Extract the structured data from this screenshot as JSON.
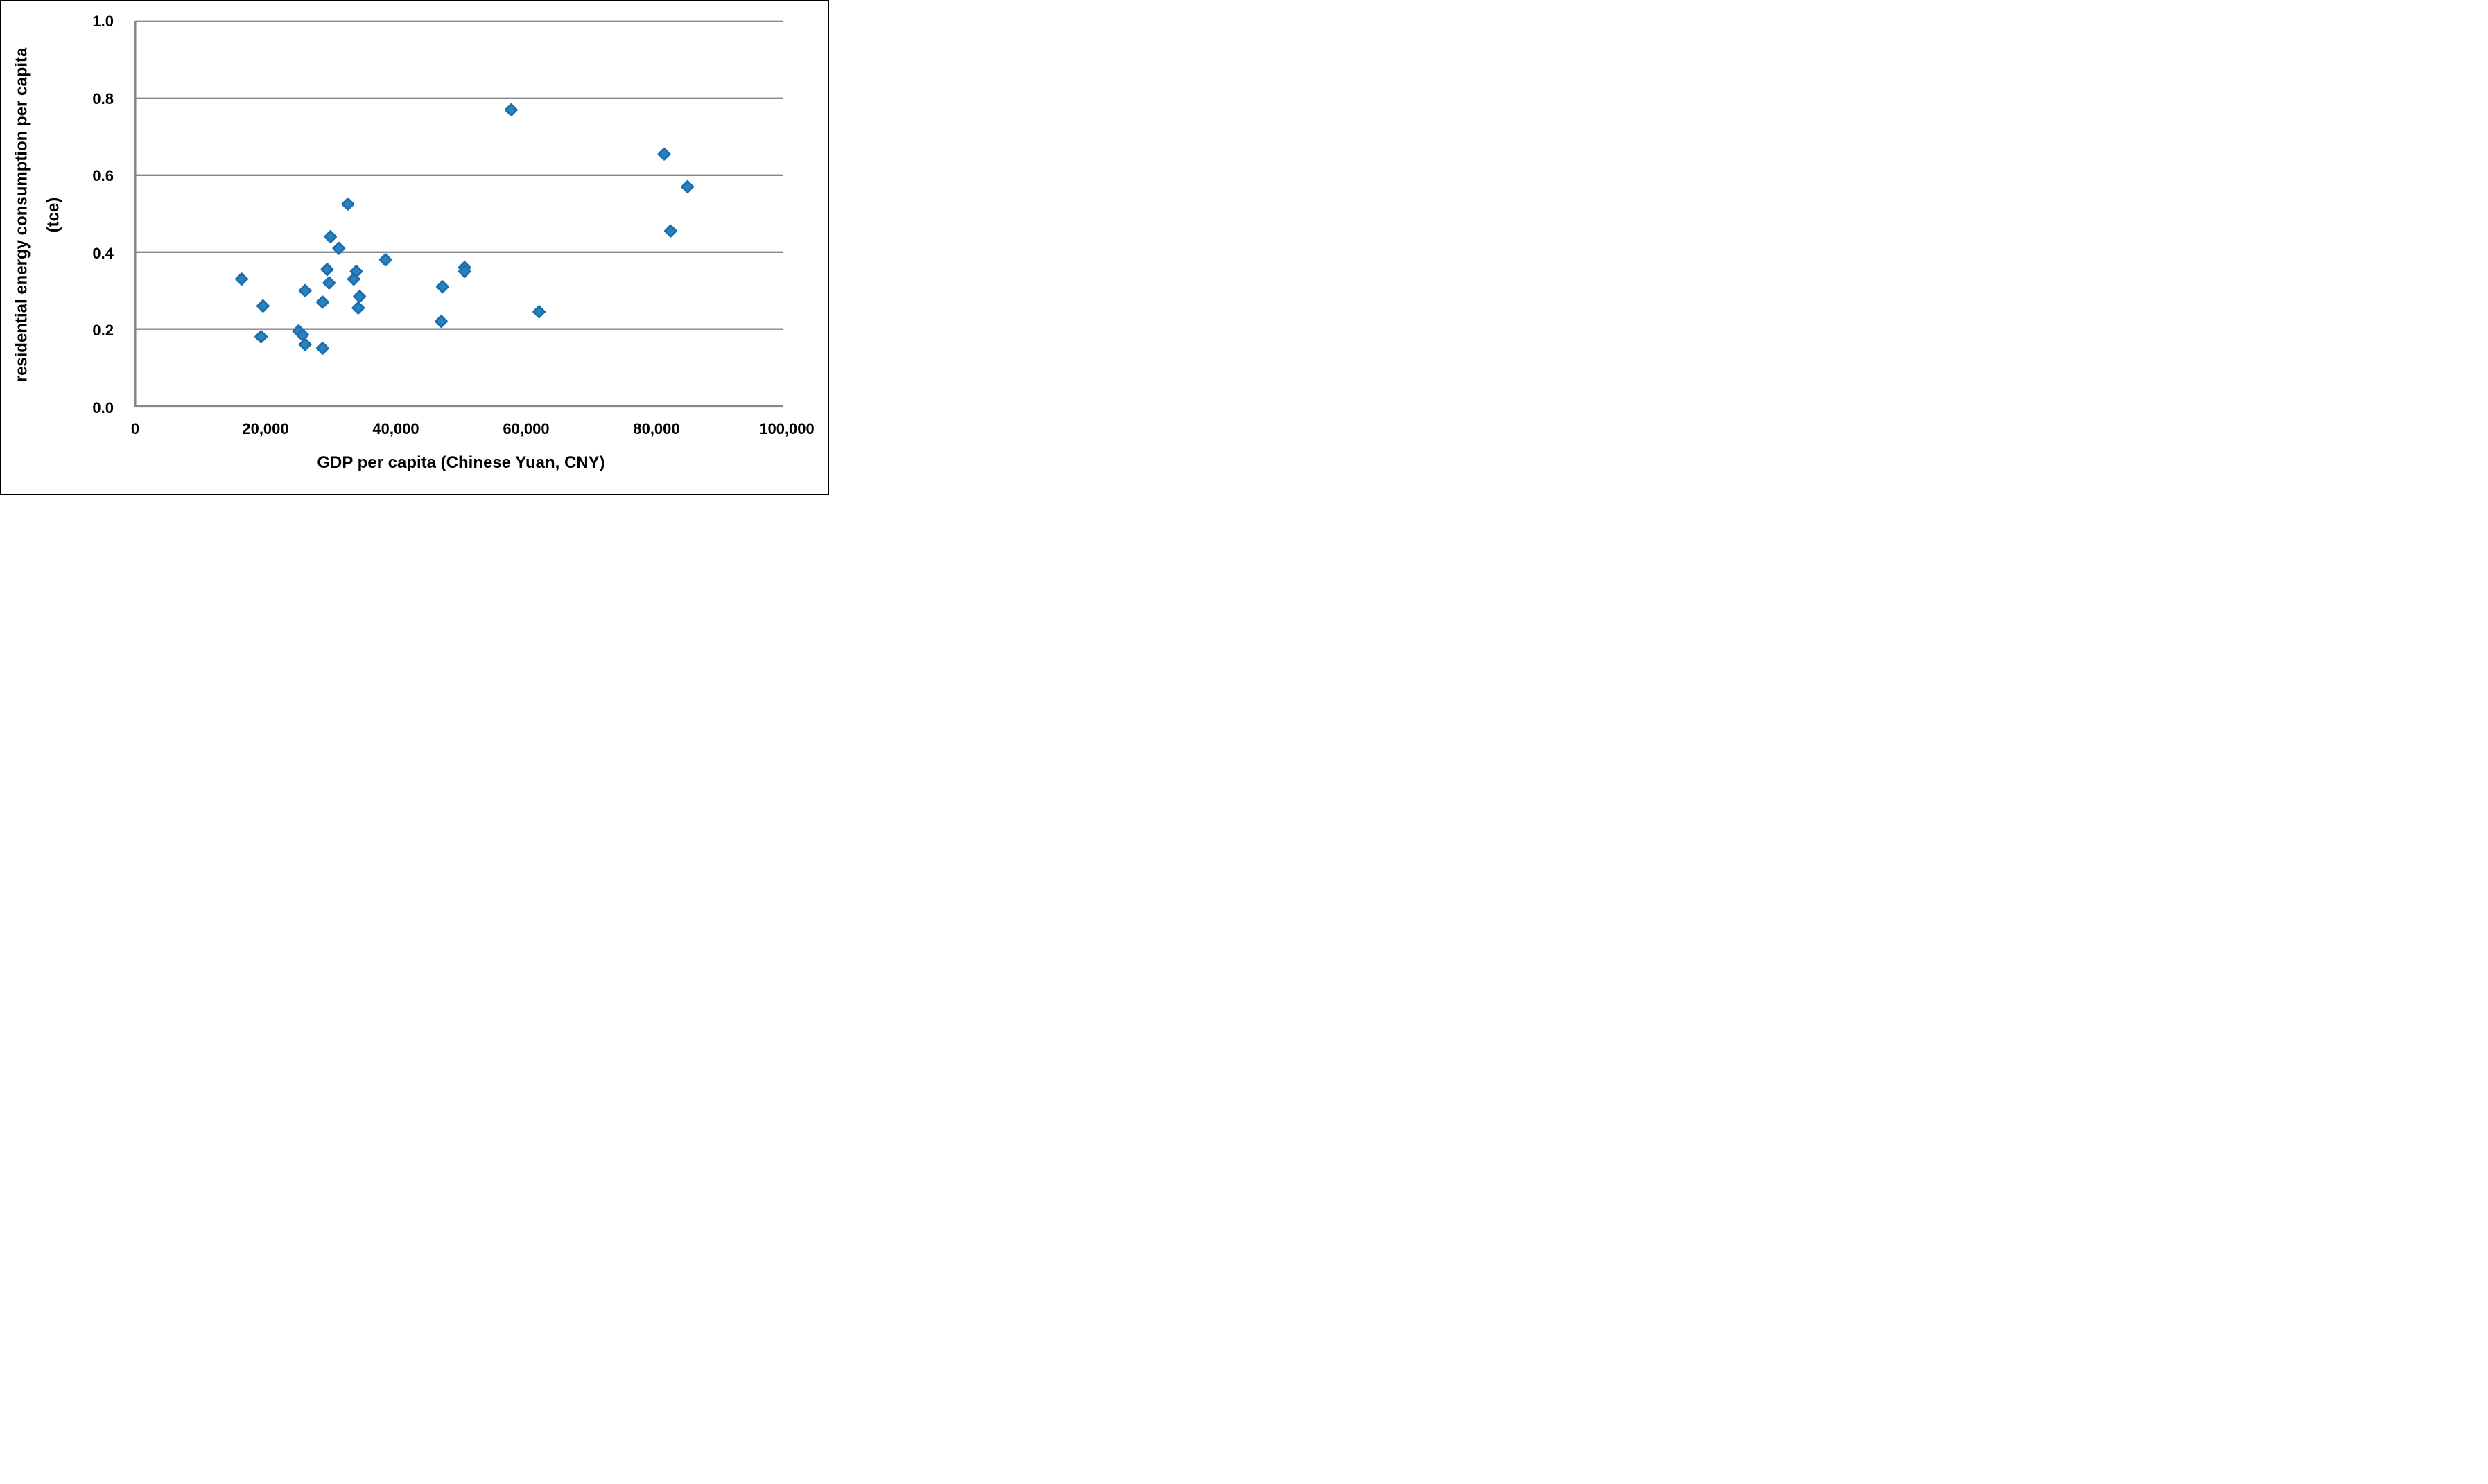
{
  "figure": {
    "background": "#ffffff",
    "frame_border_color": "#000000"
  },
  "chart_data": {
    "type": "scatter",
    "title": "",
    "xlabel": "GDP per capita (Chinese Yuan, CNY)",
    "ylabel": "residential energy consumption per capita (tce)",
    "ylabel_lines": [
      "residential energy consumption per capita",
      "(tce)"
    ],
    "xlim": [
      0,
      100000
    ],
    "ylim": [
      0.0,
      1.0
    ],
    "x_ticks": [
      0,
      20000,
      40000,
      60000,
      80000,
      100000
    ],
    "x_tick_labels": [
      "0",
      "20,000",
      "40,000",
      "60,000",
      "80,000",
      "100,000"
    ],
    "y_ticks": [
      0.0,
      0.2,
      0.4,
      0.6,
      0.8,
      1.0
    ],
    "y_tick_labels": [
      "0.0",
      "0.2",
      "0.4",
      "0.6",
      "0.8",
      "1.0"
    ],
    "grid": "horizontal-only",
    "legend_position": "none",
    "gridline_color": "#878787",
    "axis_line_color": "#878787",
    "marker": {
      "shape": "diamond",
      "fill": "#2A82BD",
      "stroke": "#1B6FB0",
      "half_size_px": 8
    },
    "points": [
      [
        16400,
        0.33
      ],
      [
        19400,
        0.18
      ],
      [
        19700,
        0.26
      ],
      [
        25200,
        0.195
      ],
      [
        25800,
        0.185
      ],
      [
        26200,
        0.16
      ],
      [
        26200,
        0.3
      ],
      [
        28900,
        0.15
      ],
      [
        28900,
        0.27
      ],
      [
        29600,
        0.355
      ],
      [
        29900,
        0.32
      ],
      [
        30100,
        0.44
      ],
      [
        31400,
        0.41
      ],
      [
        32800,
        0.525
      ],
      [
        33700,
        0.33
      ],
      [
        34100,
        0.35
      ],
      [
        34400,
        0.255
      ],
      [
        34600,
        0.285
      ],
      [
        38600,
        0.38
      ],
      [
        47200,
        0.22
      ],
      [
        47400,
        0.31
      ],
      [
        50800,
        0.36
      ],
      [
        50800,
        0.35
      ],
      [
        58000,
        0.77
      ],
      [
        62300,
        0.245
      ],
      [
        81600,
        0.655
      ],
      [
        82600,
        0.455
      ],
      [
        85200,
        0.57
      ]
    ]
  }
}
